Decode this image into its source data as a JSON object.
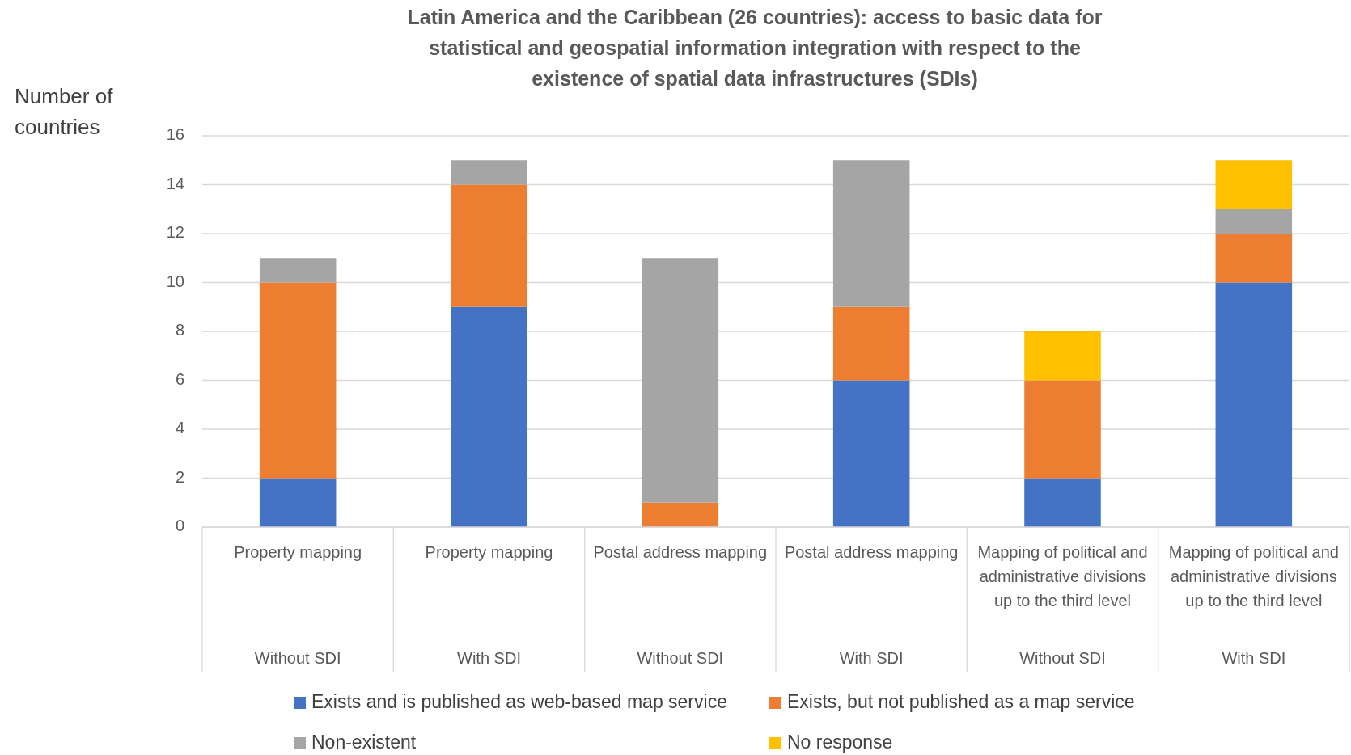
{
  "chart_data": {
    "type": "bar",
    "stacked": true,
    "title": "Latin America and the Caribbean (26 countries): access to basic data for statistical and geospatial information integration with respect to the existence of spatial data infrastructures (SDIs)",
    "ylabel": "Number of countries",
    "categories": [
      "Property mapping\nWithout SDI",
      "Property mapping\nWith SDI",
      "Postal address mapping\nWithout SDI",
      "Postal address mapping\nWith SDI",
      "Mapping of political and administrative divisions up to the third level\nWithout SDI",
      "Mapping of political and administrative divisions up to the third level\nWith SDI"
    ],
    "series": [
      {
        "name": "Exists and is published as web-based map service",
        "color": "#4472c4",
        "values": [
          2,
          9,
          0,
          6,
          2,
          10
        ]
      },
      {
        "name": "Exists, but not published as a map service",
        "color": "#ed7d31",
        "values": [
          8,
          5,
          1,
          3,
          4,
          2
        ]
      },
      {
        "name": "Non-existent",
        "color": "#a5a5a5",
        "values": [
          1,
          1,
          10,
          6,
          0,
          1
        ]
      },
      {
        "name": "No response",
        "color": "#ffc000",
        "values": [
          0,
          0,
          0,
          0,
          2,
          2
        ]
      }
    ],
    "ylim": [
      0,
      16
    ],
    "yticks": [
      0,
      2,
      4,
      6,
      8,
      10,
      12,
      14,
      16
    ],
    "grid": "y",
    "legend": "bottom"
  }
}
